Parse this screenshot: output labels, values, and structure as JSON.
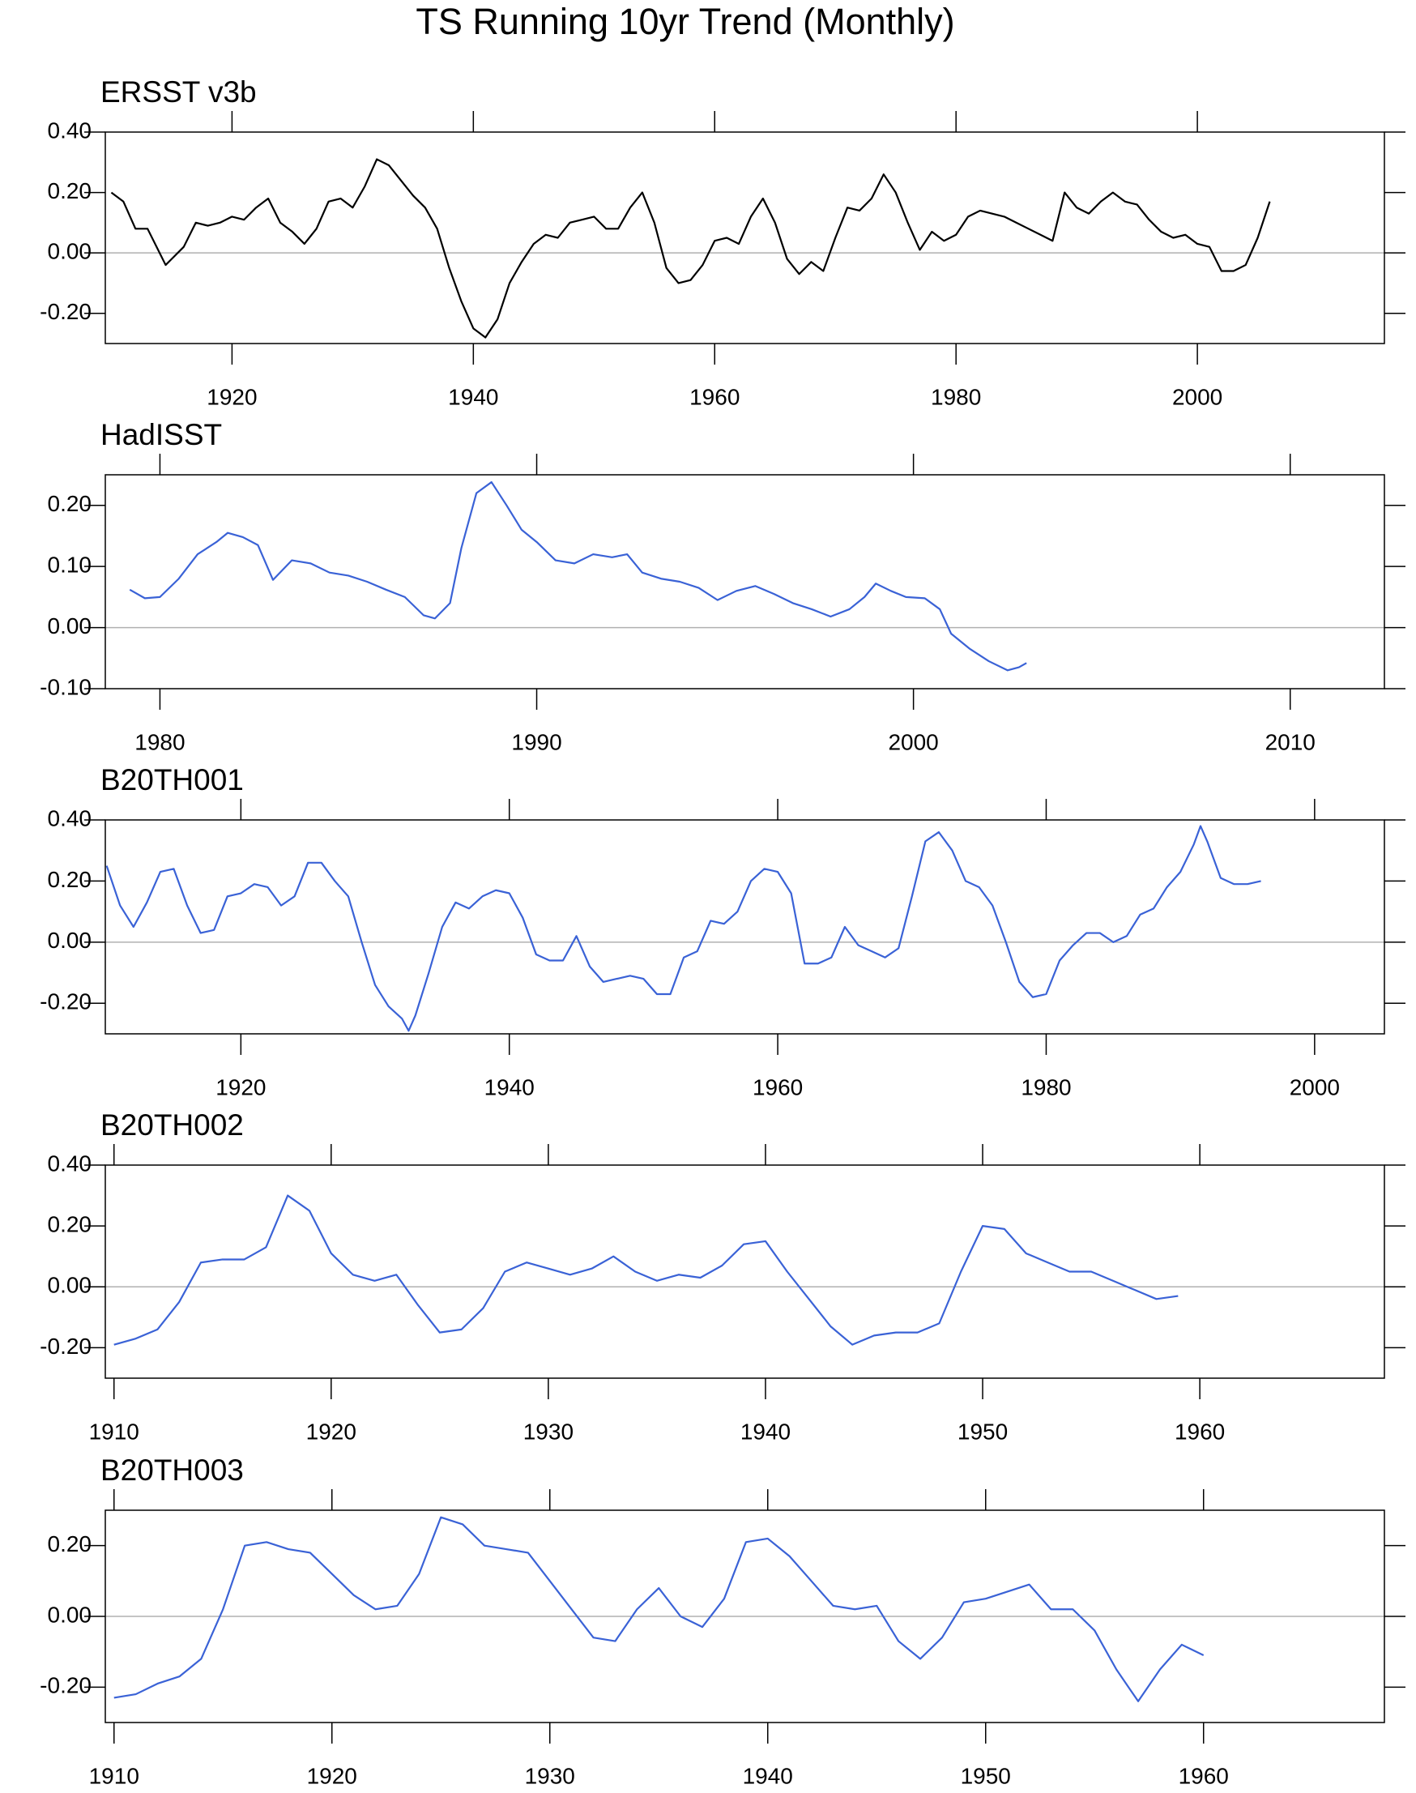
{
  "title": "TS Running 10yr Trend (Monthly)",
  "chart_data": [
    {
      "type": "line",
      "title": "ERSST v3b",
      "x": [
        1910,
        1911,
        1912,
        1913,
        1914,
        1914.5,
        1915,
        1916,
        1917,
        1918,
        1919,
        1920,
        1921,
        1922,
        1923,
        1924,
        1925,
        1926,
        1927,
        1928,
        1929,
        1930,
        1931,
        1932,
        1933,
        1934,
        1935,
        1936,
        1937,
        1938,
        1939,
        1940,
        1941,
        1942,
        1943,
        1944,
        1945,
        1946,
        1947,
        1948,
        1949,
        1950,
        1951,
        1952,
        1953,
        1954,
        1955,
        1956,
        1957,
        1958,
        1959,
        1960,
        1961,
        1962,
        1963,
        1964,
        1965,
        1966,
        1967,
        1968,
        1969,
        1970,
        1971,
        1972,
        1973,
        1974,
        1975,
        1976,
        1977,
        1978,
        1979,
        1980,
        1981,
        1982,
        1983,
        1984,
        1985,
        1986,
        1987,
        1988,
        1989,
        1990,
        1991,
        1992,
        1993,
        1994,
        1995,
        1996,
        1997,
        1998,
        1999,
        2000,
        2001,
        2002,
        2003,
        2004,
        2005,
        2006
      ],
      "series": [
        {
          "color": "#000000",
          "values": [
            0.2,
            0.17,
            0.08,
            0.08,
            0.0,
            -0.04,
            -0.02,
            0.02,
            0.1,
            0.09,
            0.1,
            0.12,
            0.11,
            0.15,
            0.18,
            0.1,
            0.07,
            0.03,
            0.08,
            0.17,
            0.18,
            0.15,
            0.22,
            0.31,
            0.29,
            0.24,
            0.19,
            0.15,
            0.08,
            -0.05,
            -0.16,
            -0.25,
            -0.28,
            -0.22,
            -0.1,
            -0.03,
            0.03,
            0.06,
            0.05,
            0.1,
            0.11,
            0.12,
            0.08,
            0.08,
            0.15,
            0.2,
            0.1,
            -0.05,
            -0.1,
            -0.09,
            -0.04,
            0.04,
            0.05,
            0.03,
            0.12,
            0.18,
            0.1,
            -0.02,
            -0.07,
            -0.03,
            -0.06,
            0.05,
            0.15,
            0.14,
            0.18,
            0.26,
            0.2,
            0.1,
            0.01,
            0.07,
            0.04,
            0.06,
            0.12,
            0.14,
            0.13,
            0.12,
            0.1,
            0.08,
            0.06,
            0.04,
            0.2,
            0.15,
            0.13,
            0.17,
            0.2,
            0.17,
            0.16,
            0.11,
            0.07,
            0.05,
            0.06,
            0.03,
            0.02,
            -0.06,
            -0.06,
            -0.04,
            0.05,
            0.17
          ]
        }
      ],
      "xlim": [
        1909.5,
        2015.5
      ],
      "xticks": [
        1920,
        1940,
        1960,
        1980,
        2000
      ],
      "ylim": [
        -0.3,
        0.4
      ],
      "yticks": [
        {
          "value": -0.2,
          "label": "-0.20"
        },
        {
          "value": 0,
          "label": "0.00"
        },
        {
          "value": 0.2,
          "label": "0.20"
        },
        {
          "value": 0.4,
          "label": "0.40"
        }
      ]
    },
    {
      "type": "line",
      "title": "HadISST",
      "x": [
        1979.2,
        1979.6,
        1980,
        1980.5,
        1981,
        1981.5,
        1981.8,
        1982.2,
        1982.6,
        1983,
        1983.5,
        1984,
        1984.5,
        1985,
        1985.5,
        1986,
        1986.5,
        1987,
        1987.3,
        1987.7,
        1988,
        1988.4,
        1988.8,
        1989.2,
        1989.6,
        1990,
        1990.5,
        1991,
        1991.5,
        1992,
        1992.4,
        1992.8,
        1993.3,
        1993.8,
        1994.3,
        1994.8,
        1995.3,
        1995.8,
        1996.3,
        1996.8,
        1997.3,
        1997.8,
        1998.3,
        1998.7,
        1999,
        1999.4,
        1999.8,
        2000.3,
        2000.7,
        2001,
        2001.5,
        2002,
        2002.5,
        2002.8,
        2003
      ],
      "series": [
        {
          "color": "#3a62d6",
          "values": [
            0.062,
            0.048,
            0.05,
            0.08,
            0.12,
            0.14,
            0.155,
            0.148,
            0.135,
            0.078,
            0.11,
            0.105,
            0.09,
            0.085,
            0.075,
            0.062,
            0.05,
            0.02,
            0.015,
            0.04,
            0.13,
            0.22,
            0.238,
            0.2,
            0.16,
            0.14,
            0.11,
            0.105,
            0.12,
            0.115,
            0.12,
            0.09,
            0.08,
            0.075,
            0.065,
            0.045,
            0.06,
            0.068,
            0.055,
            0.04,
            0.03,
            0.018,
            0.03,
            0.05,
            0.072,
            0.06,
            0.05,
            0.048,
            0.03,
            -0.01,
            -0.035,
            -0.055,
            -0.07,
            -0.065,
            -0.058
          ]
        }
      ],
      "xlim": [
        1978.55,
        2012.5
      ],
      "xticks": [
        1980,
        1990,
        2000,
        2010
      ],
      "ylim": [
        -0.1,
        0.25
      ],
      "yticks": [
        {
          "value": -0.1,
          "label": "-0.10"
        },
        {
          "value": 0,
          "label": "0.00"
        },
        {
          "value": 0.1,
          "label": "0.10"
        },
        {
          "value": 0.2,
          "label": "0.20"
        }
      ]
    },
    {
      "type": "line",
      "title": "B20TH001",
      "x": [
        1910,
        1911,
        1912,
        1913,
        1914,
        1915,
        1916,
        1917,
        1918,
        1919,
        1920,
        1921,
        1922,
        1923,
        1924,
        1925,
        1926,
        1927,
        1928,
        1929,
        1930,
        1931,
        1932,
        1932.5,
        1933,
        1934,
        1935,
        1936,
        1937,
        1938,
        1939,
        1940,
        1941,
        1942,
        1943,
        1944,
        1945,
        1946,
        1947,
        1948,
        1949,
        1950,
        1951,
        1952,
        1953,
        1954,
        1955,
        1956,
        1957,
        1958,
        1959,
        1960,
        1961,
        1962,
        1963,
        1964,
        1965,
        1966,
        1967,
        1968,
        1969,
        1970,
        1971,
        1972,
        1973,
        1974,
        1975,
        1976,
        1977,
        1978,
        1979,
        1980,
        1981,
        1982,
        1983,
        1984,
        1985,
        1986,
        1987,
        1988,
        1989,
        1990,
        1991,
        1991.5,
        1992,
        1993,
        1994,
        1995,
        1996
      ],
      "series": [
        {
          "color": "#3a62d6",
          "values": [
            0.25,
            0.12,
            0.05,
            0.13,
            0.23,
            0.24,
            0.12,
            0.03,
            0.04,
            0.15,
            0.16,
            0.19,
            0.18,
            0.12,
            0.15,
            0.26,
            0.26,
            0.2,
            0.15,
            0.0,
            -0.14,
            -0.21,
            -0.25,
            -0.29,
            -0.24,
            -0.1,
            0.05,
            0.13,
            0.11,
            0.15,
            0.17,
            0.16,
            0.08,
            -0.04,
            -0.06,
            -0.06,
            0.02,
            -0.08,
            -0.13,
            -0.12,
            -0.11,
            -0.12,
            -0.17,
            -0.17,
            -0.05,
            -0.03,
            0.07,
            0.06,
            0.1,
            0.2,
            0.24,
            0.23,
            0.16,
            -0.07,
            -0.07,
            -0.05,
            0.05,
            -0.01,
            -0.03,
            -0.05,
            -0.02,
            0.15,
            0.33,
            0.36,
            0.3,
            0.2,
            0.18,
            0.12,
            0.0,
            -0.13,
            -0.18,
            -0.17,
            -0.06,
            -0.01,
            0.03,
            0.03,
            0.0,
            0.02,
            0.09,
            0.11,
            0.18,
            0.23,
            0.32,
            0.38,
            0.33,
            0.21,
            0.19,
            0.19,
            0.2
          ]
        }
      ],
      "xlim": [
        1909.9,
        2005.2
      ],
      "xticks": [
        1920,
        1940,
        1960,
        1980,
        2000
      ],
      "ylim": [
        -0.3,
        0.4
      ],
      "yticks": [
        {
          "value": -0.2,
          "label": "-0.20"
        },
        {
          "value": 0,
          "label": "0.00"
        },
        {
          "value": 0.2,
          "label": "0.20"
        },
        {
          "value": 0.4,
          "label": "0.40"
        }
      ]
    },
    {
      "type": "line",
      "title": "B20TH002",
      "x": [
        1910,
        1911,
        1912,
        1913,
        1914,
        1915,
        1916,
        1917,
        1918,
        1919,
        1920,
        1921,
        1922,
        1923,
        1924,
        1925,
        1926,
        1927,
        1928,
        1929,
        1930,
        1931,
        1932,
        1933,
        1934,
        1935,
        1936,
        1937,
        1938,
        1939,
        1940,
        1941,
        1942,
        1943,
        1944,
        1945,
        1946,
        1947,
        1948,
        1949,
        1950,
        1951,
        1952,
        1953,
        1954,
        1955,
        1956,
        1957,
        1958,
        1959
      ],
      "series": [
        {
          "color": "#3a62d6",
          "values": [
            -0.19,
            -0.17,
            -0.14,
            -0.05,
            0.08,
            0.09,
            0.09,
            0.13,
            0.3,
            0.25,
            0.11,
            0.04,
            0.02,
            0.04,
            -0.06,
            -0.15,
            -0.14,
            -0.07,
            0.05,
            0.08,
            0.06,
            0.04,
            0.06,
            0.1,
            0.05,
            0.02,
            0.04,
            0.03,
            0.07,
            0.14,
            0.15,
            0.05,
            -0.04,
            -0.13,
            -0.19,
            -0.16,
            -0.15,
            -0.15,
            -0.12,
            0.05,
            0.2,
            0.19,
            0.11,
            0.08,
            0.05,
            0.05,
            0.02,
            -0.01,
            -0.04,
            -0.03
          ]
        }
      ],
      "xlim": [
        1909.6,
        1968.5
      ],
      "xticks": [
        1910,
        1920,
        1930,
        1940,
        1950,
        1960
      ],
      "ylim": [
        -0.3,
        0.4
      ],
      "yticks": [
        {
          "value": -0.2,
          "label": "-0.20"
        },
        {
          "value": 0,
          "label": "0.00"
        },
        {
          "value": 0.2,
          "label": "0.20"
        },
        {
          "value": 0.4,
          "label": "0.40"
        }
      ]
    },
    {
      "type": "line",
      "title": "B20TH003",
      "x": [
        1910,
        1911,
        1912,
        1913,
        1914,
        1915,
        1916,
        1917,
        1918,
        1919,
        1920,
        1921,
        1922,
        1923,
        1924,
        1925,
        1926,
        1927,
        1928,
        1929,
        1930,
        1931,
        1932,
        1933,
        1934,
        1935,
        1936,
        1937,
        1938,
        1939,
        1940,
        1941,
        1942,
        1943,
        1944,
        1945,
        1946,
        1947,
        1948,
        1949,
        1950,
        1951,
        1952,
        1953,
        1954,
        1955,
        1956,
        1957,
        1958,
        1959,
        1960
      ],
      "series": [
        {
          "color": "#3a62d6",
          "values": [
            -0.23,
            -0.22,
            -0.19,
            -0.17,
            -0.12,
            0.02,
            0.2,
            0.21,
            0.19,
            0.18,
            0.12,
            0.06,
            0.02,
            0.03,
            0.12,
            0.28,
            0.26,
            0.2,
            0.19,
            0.18,
            0.1,
            0.02,
            -0.06,
            -0.07,
            0.02,
            0.08,
            0.0,
            -0.03,
            0.05,
            0.21,
            0.22,
            0.17,
            0.1,
            0.03,
            0.02,
            0.03,
            -0.07,
            -0.12,
            -0.06,
            0.04,
            0.05,
            0.07,
            0.09,
            0.02,
            0.02,
            -0.04,
            -0.15,
            -0.24,
            -0.15,
            -0.08,
            -0.11
          ]
        }
      ],
      "xlim": [
        1909.6,
        1968.3
      ],
      "xticks": [
        1910,
        1920,
        1930,
        1940,
        1950,
        1960
      ],
      "ylim": [
        -0.3,
        0.3
      ],
      "yticks": [
        {
          "value": -0.2,
          "label": "-0.20"
        },
        {
          "value": 0,
          "label": "0.00"
        },
        {
          "value": 0.2,
          "label": "0.20"
        }
      ]
    }
  ]
}
